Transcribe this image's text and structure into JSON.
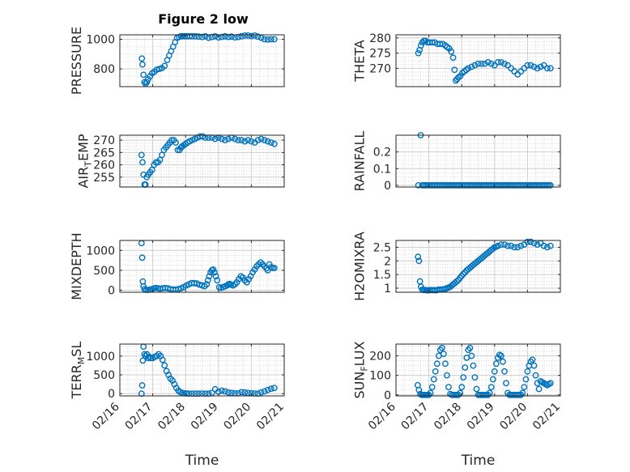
{
  "figure": {
    "title": "Figure 2 low",
    "marker_color": "#0072BD",
    "axis_color": "#262626",
    "grid_color": "#d9d9d9",
    "background": "#ffffff"
  },
  "chart_data": [
    {
      "type": "scatter",
      "ylabel": "PRESSURE",
      "xlim": [
        0,
        5
      ],
      "ylim": [
        680,
        1030
      ],
      "yticks": [
        800,
        1000
      ],
      "yticklabels": [
        "800",
        "1000"
      ],
      "x": [
        0.67,
        0.69,
        0.72,
        0.75,
        0.78,
        0.82,
        0.86,
        0.92,
        0.98,
        1.05,
        1.12,
        1.2,
        1.28,
        1.36,
        1.44,
        1.5,
        1.56,
        1.62,
        1.68,
        1.74,
        1.8,
        1.86,
        1.92,
        1.98,
        2.04,
        2.12,
        2.2,
        2.3,
        2.4,
        2.5,
        2.6,
        2.7,
        2.8,
        2.9,
        3.0,
        3.1,
        3.2,
        3.3,
        3.4,
        3.5,
        3.6,
        3.7,
        3.8,
        3.9,
        4.0,
        4.1,
        4.2,
        4.3,
        4.4,
        4.5,
        4.6,
        4.7
      ],
      "y": [
        870,
        830,
        760,
        710,
        700,
        710,
        730,
        750,
        770,
        780,
        795,
        800,
        805,
        820,
        860,
        890,
        920,
        950,
        980,
        1010,
        1015,
        1020,
        1020,
        1020,
        1020,
        1020,
        1020,
        1020,
        1018,
        1015,
        1020,
        1010,
        1015,
        1020,
        1012,
        1016,
        1020,
        1015,
        1018,
        1012,
        1015,
        1020,
        1025,
        1025,
        1022,
        1025,
        1018,
        1010,
        1000,
        998,
        1000,
        1000
      ]
    },
    {
      "type": "scatter",
      "ylabel": "THETA",
      "xlim": [
        0,
        5
      ],
      "ylim": [
        264,
        281
      ],
      "yticks": [
        270,
        275,
        280
      ],
      "yticklabels": [
        "270",
        "275",
        "280"
      ],
      "x": [
        0.68,
        0.72,
        0.76,
        0.8,
        0.85,
        0.9,
        0.96,
        1.02,
        1.1,
        1.18,
        1.26,
        1.34,
        1.42,
        1.5,
        1.56,
        1.62,
        1.68,
        1.74,
        1.78,
        1.82,
        1.86,
        1.9,
        1.96,
        2.02,
        2.08,
        2.14,
        2.2,
        2.3,
        2.4,
        2.5,
        2.6,
        2.7,
        2.8,
        2.9,
        3.0,
        3.1,
        3.2,
        3.3,
        3.4,
        3.5,
        3.6,
        3.7,
        3.8,
        3.9,
        4.0,
        4.1,
        4.2,
        4.3,
        4.4,
        4.5,
        4.6,
        4.7
      ],
      "y": [
        275,
        276,
        277.5,
        278.5,
        279,
        279,
        278.5,
        278.5,
        278.5,
        278.5,
        278,
        278,
        278,
        277.5,
        277,
        276.5,
        275.5,
        273.5,
        269.5,
        266,
        266.5,
        267,
        267.5,
        268.5,
        269,
        269.5,
        270,
        270.5,
        271,
        271.5,
        271.5,
        271.5,
        272,
        271.5,
        271,
        272,
        272,
        271.5,
        271,
        270,
        269,
        268,
        269,
        270,
        271,
        271,
        270.5,
        270,
        270.5,
        271,
        270,
        270
      ]
    },
    {
      "type": "scatter",
      "ylabel": "AIR_TEMP",
      "xlim": [
        0,
        5
      ],
      "ylim": [
        251,
        272
      ],
      "yticks": [
        255,
        260,
        265,
        270
      ],
      "yticklabels": [
        "255",
        "260",
        "265",
        "270"
      ],
      "x": [
        0.66,
        0.69,
        0.72,
        0.75,
        0.78,
        0.82,
        0.87,
        0.92,
        0.98,
        1.04,
        1.1,
        1.16,
        1.22,
        1.28,
        1.34,
        1.4,
        1.46,
        1.52,
        1.58,
        1.64,
        1.7,
        1.76,
        1.82,
        1.86,
        1.9,
        1.95,
        2.0,
        2.06,
        2.12,
        2.2,
        2.28,
        2.36,
        2.44,
        2.52,
        2.6,
        2.7,
        2.8,
        2.9,
        3.0,
        3.1,
        3.2,
        3.3,
        3.4,
        3.5,
        3.6,
        3.7,
        3.8,
        3.9,
        4.0,
        4.1,
        4.2,
        4.3,
        4.4,
        4.5,
        4.6,
        4.7
      ],
      "y": [
        264,
        261,
        256,
        252,
        252,
        255,
        256,
        257,
        258,
        260,
        261,
        261,
        262,
        264,
        266,
        267,
        268,
        269,
        270,
        270,
        269,
        266,
        266,
        267,
        267.5,
        268,
        268.5,
        269,
        269.5,
        270,
        270.5,
        271,
        271.5,
        271.5,
        271,
        271,
        271,
        270.5,
        271,
        270.5,
        270,
        270.5,
        271,
        270.5,
        270,
        270,
        269.5,
        270,
        269.5,
        269,
        270,
        270.5,
        270,
        269.5,
        269,
        268.5
      ]
    },
    {
      "type": "scatter",
      "ylabel": "RAINFALL",
      "xlim": [
        0,
        5
      ],
      "ylim": [
        -0.01,
        0.3
      ],
      "yticks": [
        0,
        0.1,
        0.2
      ],
      "yticklabels": [
        "0",
        "0.1",
        "0.2"
      ],
      "x": [
        0.68,
        0.75,
        0.8,
        0.85,
        0.9,
        0.95,
        1.0,
        1.05,
        1.1,
        1.15,
        1.2,
        1.25,
        1.3,
        1.35,
        1.4,
        1.45,
        1.5,
        1.55,
        1.6,
        1.65,
        1.7,
        1.75,
        1.8,
        1.85,
        1.9,
        1.95,
        2.0,
        2.05,
        2.1,
        2.15,
        2.2,
        2.25,
        2.3,
        2.35,
        2.4,
        2.45,
        2.5,
        2.55,
        2.6,
        2.65,
        2.7,
        2.75,
        2.8,
        2.85,
        2.9,
        2.95,
        3.0,
        3.05,
        3.1,
        3.15,
        3.2,
        3.25,
        3.3,
        3.35,
        3.4,
        3.45,
        3.5,
        3.55,
        3.6,
        3.65,
        3.7,
        3.75,
        3.8,
        3.85,
        3.9,
        3.95,
        4.0,
        4.05,
        4.1,
        4.15,
        4.2,
        4.25,
        4.3,
        4.35,
        4.4,
        4.45,
        4.5,
        4.55,
        4.6,
        4.65,
        4.7
      ],
      "y": [
        0,
        0.3,
        0,
        0,
        0,
        0,
        0,
        0,
        0,
        0,
        0,
        0,
        0,
        0,
        0,
        0,
        0,
        0,
        0,
        0,
        0,
        0,
        0,
        0,
        0,
        0,
        0,
        0,
        0,
        0,
        0,
        0,
        0,
        0,
        0,
        0,
        0,
        0,
        0,
        0,
        0,
        0,
        0,
        0,
        0,
        0,
        0,
        0,
        0,
        0,
        0,
        0,
        0,
        0,
        0,
        0,
        0,
        0,
        0,
        0,
        0,
        0,
        0,
        0,
        0,
        0,
        0,
        0,
        0,
        0,
        0,
        0,
        0,
        0,
        0,
        0,
        0,
        0,
        0,
        0,
        0
      ]
    },
    {
      "type": "scatter",
      "ylabel": "MIXDEPTH",
      "xlim": [
        0,
        5
      ],
      "ylim": [
        -50,
        1250
      ],
      "yticks": [
        0,
        500,
        1000
      ],
      "yticklabels": [
        "0",
        "500",
        "1000"
      ],
      "x": [
        0.66,
        0.68,
        0.7,
        0.72,
        0.75,
        0.8,
        0.86,
        0.92,
        0.98,
        1.04,
        1.1,
        1.16,
        1.22,
        1.3,
        1.38,
        1.46,
        1.54,
        1.62,
        1.7,
        1.78,
        1.86,
        1.94,
        2.02,
        2.1,
        2.18,
        2.26,
        2.34,
        2.42,
        2.5,
        2.58,
        2.64,
        2.68,
        2.72,
        2.76,
        2.8,
        2.84,
        2.88,
        2.92,
        2.96,
        3.02,
        3.08,
        3.14,
        3.2,
        3.26,
        3.3,
        3.34,
        3.38,
        3.44,
        3.5,
        3.56,
        3.62,
        3.68,
        3.74,
        3.8,
        3.86,
        3.92,
        3.98,
        4.04,
        4.1,
        4.16,
        4.22,
        4.28,
        4.34,
        4.4,
        4.46,
        4.5,
        4.55,
        4.6,
        4.65,
        4.7
      ],
      "y": [
        1180,
        820,
        220,
        100,
        30,
        10,
        10,
        20,
        30,
        50,
        60,
        50,
        40,
        50,
        60,
        50,
        30,
        20,
        20,
        30,
        50,
        80,
        120,
        150,
        180,
        180,
        170,
        140,
        120,
        100,
        150,
        250,
        350,
        450,
        500,
        520,
        450,
        350,
        250,
        80,
        60,
        80,
        100,
        120,
        150,
        160,
        140,
        120,
        150,
        200,
        280,
        350,
        320,
        250,
        200,
        280,
        350,
        450,
        520,
        600,
        650,
        700,
        650,
        600,
        550,
        500,
        650,
        580,
        560,
        560
      ]
    },
    {
      "type": "scatter",
      "ylabel": "H2OMIXRA",
      "xlim": [
        0,
        5
      ],
      "ylim": [
        0.85,
        2.75
      ],
      "yticks": [
        1,
        1.5,
        2,
        2.5
      ],
      "yticklabels": [
        "1",
        "1.5",
        "2",
        "2.5"
      ],
      "x": [
        0.67,
        0.7,
        0.73,
        0.76,
        0.8,
        0.84,
        0.88,
        0.92,
        0.96,
        1.0,
        1.05,
        1.1,
        1.15,
        1.2,
        1.25,
        1.3,
        1.35,
        1.4,
        1.45,
        1.5,
        1.55,
        1.6,
        1.65,
        1.7,
        1.75,
        1.8,
        1.85,
        1.9,
        1.95,
        2.0,
        2.05,
        2.1,
        2.15,
        2.2,
        2.25,
        2.3,
        2.35,
        2.4,
        2.45,
        2.5,
        2.55,
        2.6,
        2.65,
        2.7,
        2.75,
        2.8,
        2.85,
        2.9,
        2.95,
        3.0,
        3.05,
        3.1,
        3.2,
        3.3,
        3.4,
        3.5,
        3.6,
        3.7,
        3.8,
        3.9,
        4.0,
        4.1,
        4.2,
        4.3,
        4.4,
        4.5,
        4.6,
        4.7
      ],
      "y": [
        2.15,
        2.0,
        1.25,
        1.05,
        0.95,
        0.93,
        0.93,
        0.93,
        0.92,
        0.92,
        0.93,
        0.93,
        0.93,
        0.92,
        0.93,
        0.95,
        0.95,
        0.95,
        0.96,
        0.97,
        1.0,
        1.02,
        1.05,
        1.1,
        1.15,
        1.2,
        1.25,
        1.3,
        1.38,
        1.45,
        1.52,
        1.58,
        1.65,
        1.7,
        1.75,
        1.8,
        1.85,
        1.9,
        1.95,
        2.0,
        2.05,
        2.1,
        2.15,
        2.2,
        2.25,
        2.3,
        2.35,
        2.4,
        2.45,
        2.5,
        2.52,
        2.55,
        2.6,
        2.6,
        2.55,
        2.55,
        2.5,
        2.5,
        2.55,
        2.6,
        2.7,
        2.7,
        2.65,
        2.6,
        2.65,
        2.55,
        2.5,
        2.55
      ]
    },
    {
      "type": "scatter",
      "ylabel": "TERR_MSL",
      "xlim": [
        0,
        5
      ],
      "ylim": [
        -60,
        1320
      ],
      "yticks": [
        0,
        500,
        1000
      ],
      "yticklabels": [
        "0",
        "500",
        "1000"
      ],
      "x": [
        0.66,
        0.68,
        0.7,
        0.72,
        0.75,
        0.78,
        0.82,
        0.86,
        0.9,
        0.94,
        1.0,
        1.06,
        1.12,
        1.18,
        1.24,
        1.3,
        1.36,
        1.42,
        1.48,
        1.54,
        1.6,
        1.66,
        1.72,
        1.78,
        1.84,
        1.9,
        1.96,
        2.02,
        2.1,
        2.2,
        2.3,
        2.4,
        2.5,
        2.6,
        2.7,
        2.8,
        2.9,
        3.0,
        3.1,
        3.2,
        3.3,
        3.4,
        3.5,
        3.6,
        3.7,
        3.8,
        3.9,
        4.0,
        4.1,
        4.2,
        4.3,
        4.4,
        4.5,
        4.6,
        4.7
      ],
      "y": [
        0,
        220,
        880,
        1250,
        1050,
        1000,
        1050,
        950,
        980,
        950,
        950,
        980,
        1000,
        1050,
        1000,
        900,
        750,
        600,
        500,
        400,
        350,
        250,
        150,
        80,
        40,
        20,
        10,
        5,
        0,
        0,
        0,
        0,
        5,
        0,
        0,
        20,
        120,
        50,
        80,
        60,
        30,
        20,
        10,
        10,
        40,
        30,
        20,
        10,
        5,
        0,
        30,
        60,
        100,
        130,
        150
      ]
    },
    {
      "type": "scatter",
      "ylabel": "SUN_FLUX",
      "xlim": [
        0,
        5
      ],
      "ylim": [
        -5,
        260
      ],
      "yticks": [
        0,
        100,
        200
      ],
      "yticklabels": [
        "0",
        "100",
        "200"
      ],
      "x": [
        0.66,
        0.7,
        0.74,
        0.78,
        0.82,
        0.86,
        0.9,
        0.95,
        1.0,
        1.05,
        1.1,
        1.15,
        1.2,
        1.25,
        1.3,
        1.35,
        1.4,
        1.45,
        1.5,
        1.55,
        1.6,
        1.65,
        1.7,
        1.75,
        1.8,
        1.85,
        1.9,
        1.95,
        2.0,
        2.05,
        2.1,
        2.15,
        2.2,
        2.25,
        2.3,
        2.35,
        2.4,
        2.45,
        2.5,
        2.55,
        2.6,
        2.65,
        2.7,
        2.75,
        2.8,
        2.85,
        2.9,
        2.95,
        3.0,
        3.05,
        3.1,
        3.15,
        3.2,
        3.25,
        3.3,
        3.35,
        3.4,
        3.45,
        3.5,
        3.55,
        3.6,
        3.65,
        3.7,
        3.75,
        3.8,
        3.85,
        3.9,
        3.95,
        4.0,
        4.05,
        4.1,
        4.15,
        4.2,
        4.25,
        4.3,
        4.35,
        4.4,
        4.45,
        4.5,
        4.55,
        4.6,
        4.65,
        4.7
      ],
      "y": [
        50,
        25,
        5,
        0,
        0,
        0,
        0,
        0,
        0,
        10,
        40,
        80,
        120,
        160,
        200,
        230,
        240,
        210,
        160,
        100,
        40,
        5,
        0,
        0,
        0,
        0,
        0,
        10,
        40,
        90,
        140,
        190,
        230,
        240,
        200,
        150,
        90,
        30,
        0,
        0,
        0,
        0,
        0,
        0,
        0,
        10,
        40,
        80,
        120,
        160,
        190,
        205,
        200,
        170,
        120,
        60,
        10,
        0,
        0,
        0,
        0,
        0,
        0,
        0,
        0,
        10,
        40,
        80,
        120,
        150,
        170,
        180,
        150,
        100,
        60,
        30,
        70,
        65,
        60,
        55,
        50,
        55,
        60
      ]
    }
  ],
  "panels": [
    {
      "ylabel_main": "PRESSURE",
      "ylabel_sub": "",
      "ylabel_tail": "",
      "xlabel": ""
    },
    {
      "ylabel_main": "THETA",
      "ylabel_sub": "",
      "ylabel_tail": "",
      "xlabel": ""
    },
    {
      "ylabel_main": "AIR",
      "ylabel_sub": "T",
      "ylabel_tail": "EMP",
      "xlabel": ""
    },
    {
      "ylabel_main": "RAINFALL",
      "ylabel_sub": "",
      "ylabel_tail": "",
      "xlabel": ""
    },
    {
      "ylabel_main": "MIXDEPTH",
      "ylabel_sub": "",
      "ylabel_tail": "",
      "xlabel": ""
    },
    {
      "ylabel_main": "H2OMIXRA",
      "ylabel_sub": "",
      "ylabel_tail": "",
      "xlabel": ""
    },
    {
      "ylabel_main": "TERR",
      "ylabel_sub": "M",
      "ylabel_tail": "SL",
      "xlabel": "Time"
    },
    {
      "ylabel_main": "SUN",
      "ylabel_sub": "F",
      "ylabel_tail": "LUX",
      "xlabel": "Time"
    }
  ],
  "x_axis": {
    "ticks": [
      0,
      1,
      2,
      3,
      4,
      5
    ],
    "ticklabels": [
      "02/16",
      "02/17",
      "02/18",
      "02/19",
      "02/20",
      "02/21"
    ]
  }
}
